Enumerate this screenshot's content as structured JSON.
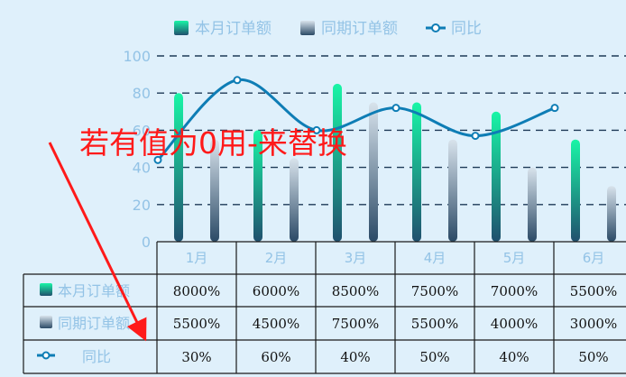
{
  "chart_data": {
    "type": "bar",
    "categories": [
      "1月",
      "2月",
      "3月",
      "4月",
      "5月",
      "6月"
    ],
    "series": [
      {
        "name": "本月订单额",
        "type": "bar",
        "values": [
          80,
          60,
          85,
          75,
          70,
          55
        ]
      },
      {
        "name": "同期订单额",
        "type": "bar",
        "values": [
          55,
          45,
          75,
          55,
          40,
          30
        ]
      },
      {
        "name": "同比",
        "type": "line",
        "values": [
          44,
          87,
          60,
          72,
          57,
          72
        ]
      }
    ],
    "y_ticks": [
      "0",
      "20",
      "40",
      "60",
      "80",
      "100"
    ],
    "ylim": [
      0,
      100
    ],
    "grid": "dashed horizontal",
    "legend": "top-center",
    "data_table": {
      "rows": [
        {
          "label": "本月订单额",
          "cells": [
            "8000%",
            "6000%",
            "8500%",
            "7500%",
            "7000%",
            "5500%"
          ]
        },
        {
          "label": "同期订单额",
          "cells": [
            "5500%",
            "4500%",
            "7500%",
            "5500%",
            "4000%",
            "3000%"
          ]
        },
        {
          "label": "同比",
          "cells": [
            "30%",
            "60%",
            "40%",
            "50%",
            "40%",
            "50%"
          ]
        }
      ]
    },
    "annotation": "若有值为0用-来替换"
  },
  "colors": {
    "current_top": "#19f5a6",
    "current_bottom": "#20506e",
    "prior_top": "#d8e3ec",
    "prior_bottom": "#2b4a66",
    "line": "#0e7db5",
    "grid": "#1e3a57",
    "annotation": "#ff1a1a",
    "background": "#dff0fb"
  }
}
